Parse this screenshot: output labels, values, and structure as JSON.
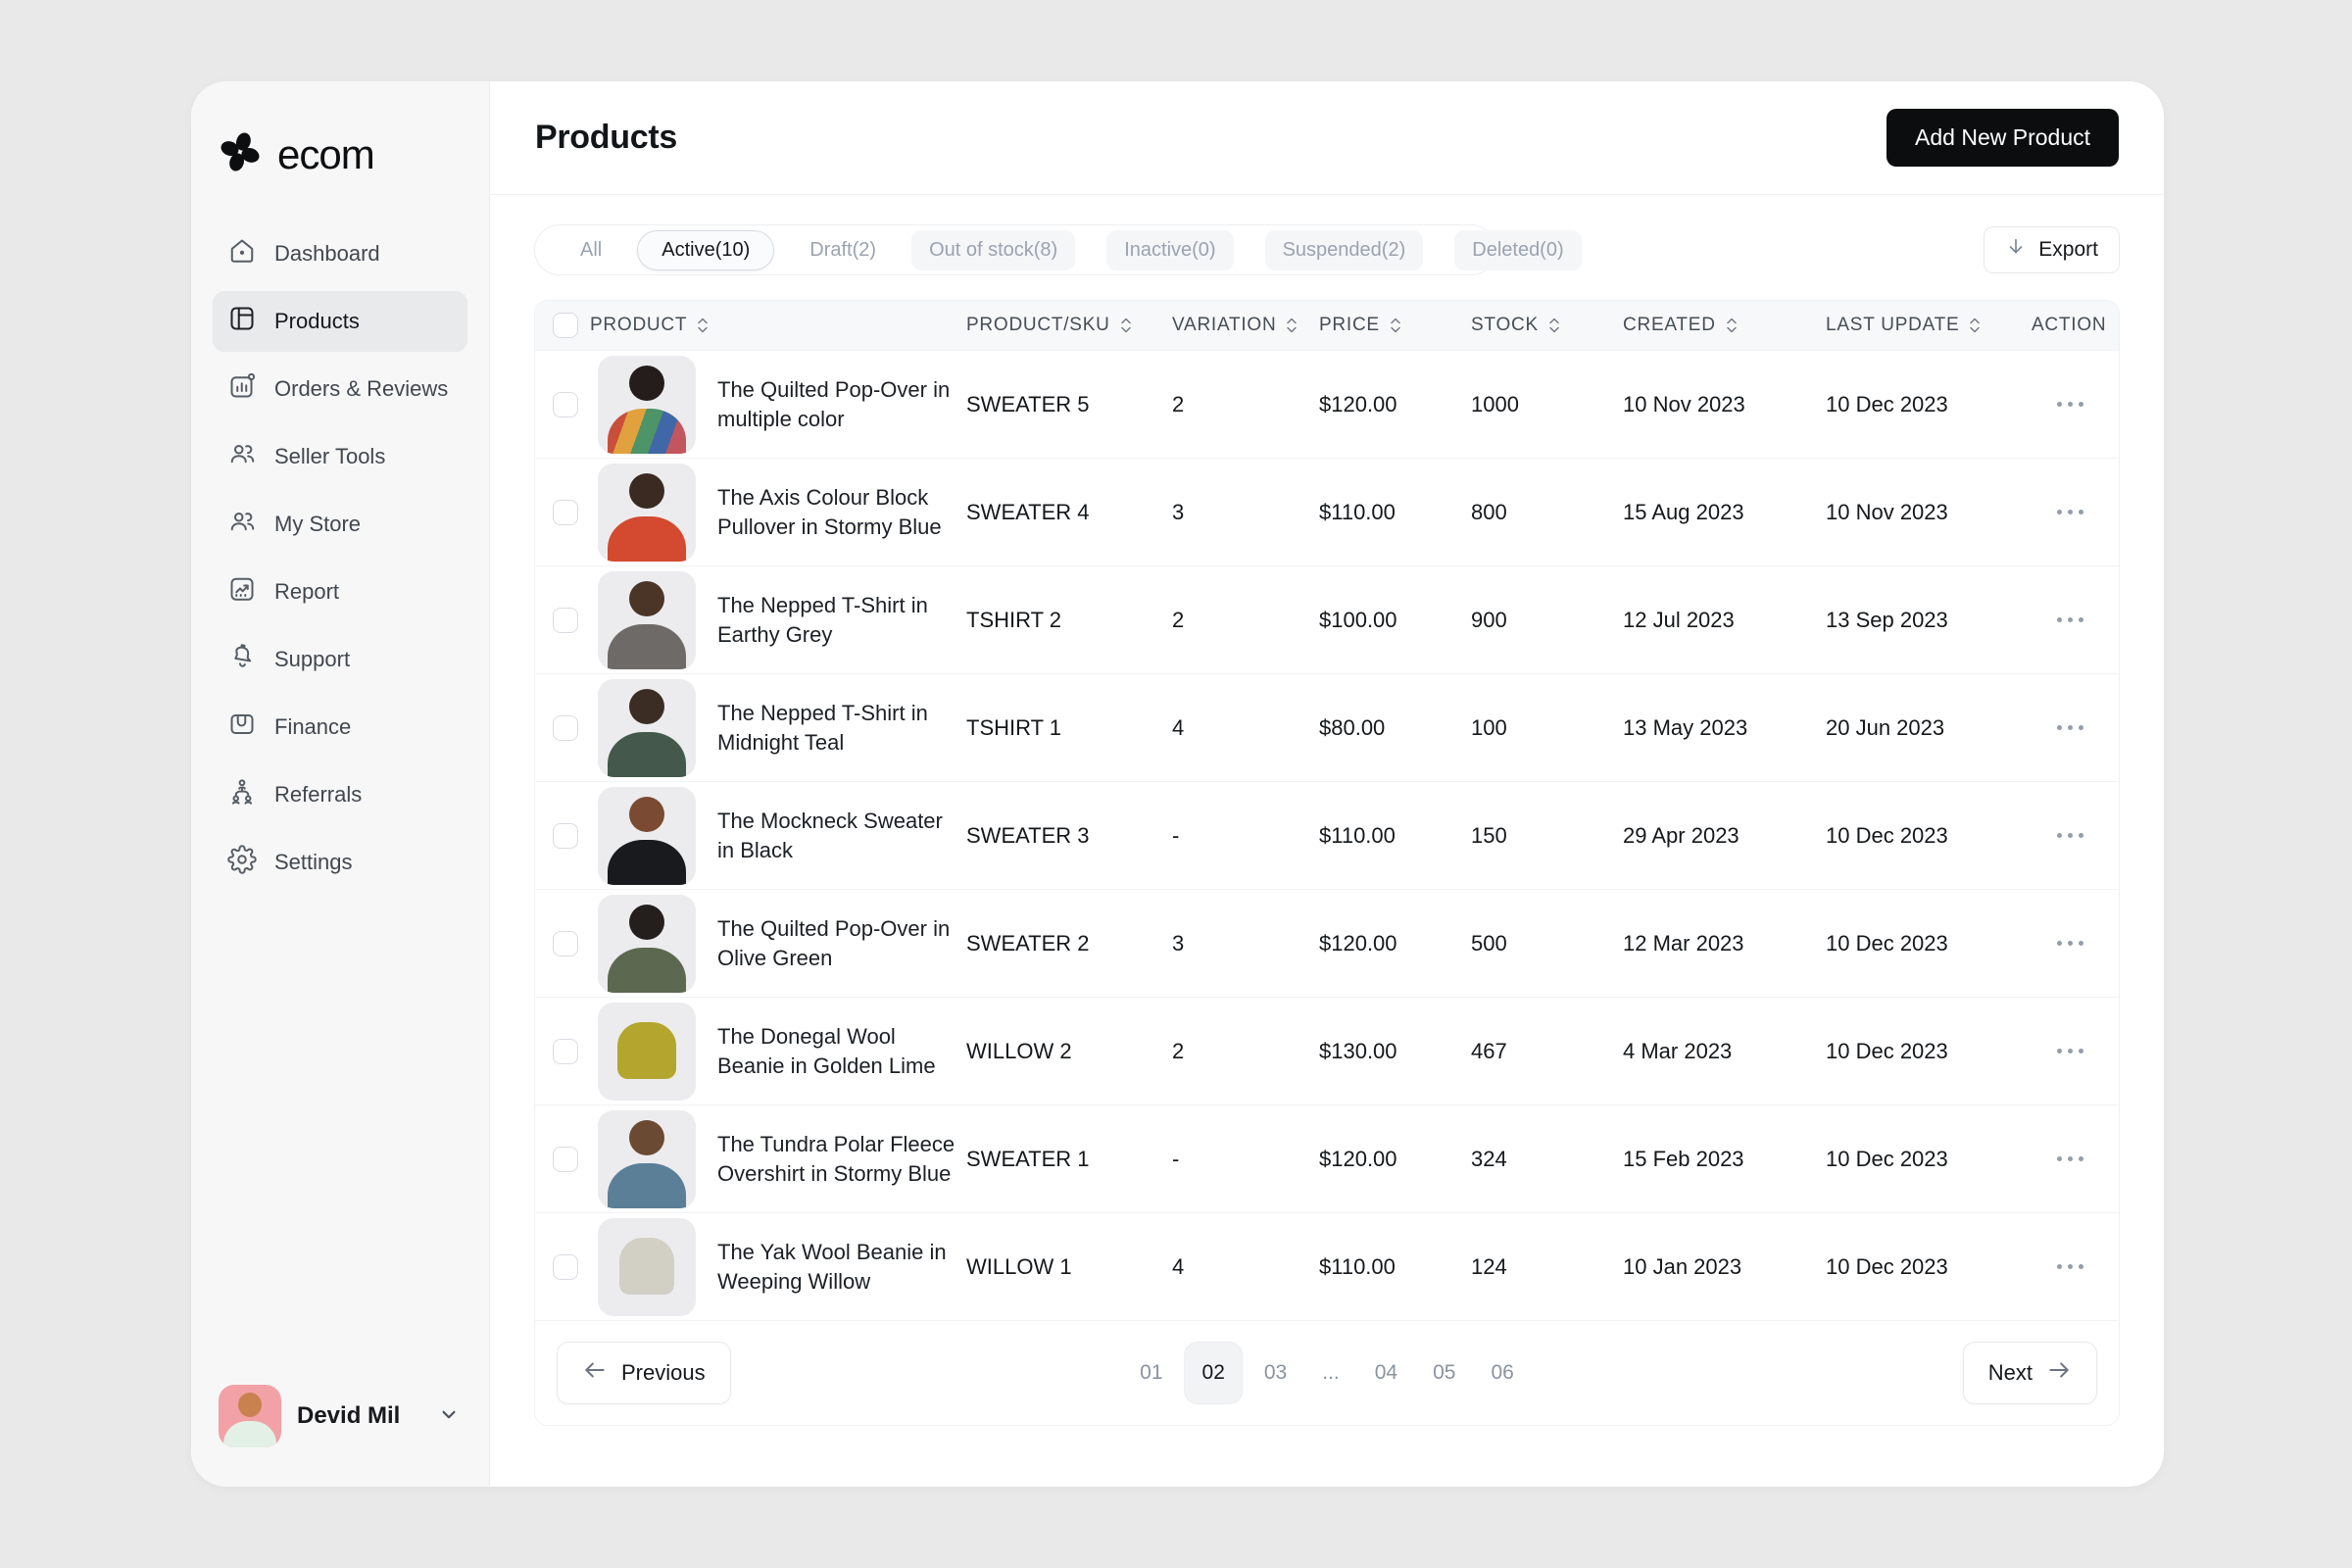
{
  "brand": {
    "name": "ecom",
    "logo_icon": "clover-icon"
  },
  "sidebar": {
    "items": [
      {
        "label": "Dashboard",
        "icon": "home-icon",
        "active": false
      },
      {
        "label": "Products",
        "icon": "products-icon",
        "active": true
      },
      {
        "label": "Orders & Reviews",
        "icon": "orders-reviews-icon",
        "active": false
      },
      {
        "label": "Seller Tools",
        "icon": "seller-tools-icon",
        "active": false
      },
      {
        "label": "My Store",
        "icon": "my-store-icon",
        "active": false
      },
      {
        "label": "Report",
        "icon": "report-icon",
        "active": false
      },
      {
        "label": "Support",
        "icon": "support-icon",
        "active": false
      },
      {
        "label": "Finance",
        "icon": "finance-icon",
        "active": false
      },
      {
        "label": "Referrals",
        "icon": "referrals-icon",
        "active": false
      },
      {
        "label": "Settings",
        "icon": "settings-icon",
        "active": false
      }
    ],
    "user": {
      "name": "Devid Mil"
    }
  },
  "header": {
    "title": "Products",
    "add_button": "Add New Product"
  },
  "toolbar": {
    "tabs": [
      {
        "label": "All",
        "style": "plain",
        "selected": false
      },
      {
        "label": "Active(10)",
        "style": "active",
        "selected": true
      },
      {
        "label": "Draft(2)",
        "style": "plain",
        "selected": false
      },
      {
        "label": "Out of stock(8)",
        "style": "soft",
        "selected": false
      },
      {
        "label": "Inactive(0)",
        "style": "soft",
        "selected": false
      },
      {
        "label": "Suspended(2)",
        "style": "soft",
        "selected": false
      },
      {
        "label": "Deleted(0)",
        "style": "soft",
        "selected": false
      }
    ],
    "export_label": "Export"
  },
  "table": {
    "columns": [
      {
        "label": "PRODUCT",
        "sortable": true
      },
      {
        "label": "PRODUCT/SKU",
        "sortable": true
      },
      {
        "label": "VARIATION",
        "sortable": true
      },
      {
        "label": "PRICE",
        "sortable": true
      },
      {
        "label": "STOCK",
        "sortable": true
      },
      {
        "label": "CREATED",
        "sortable": true
      },
      {
        "label": "LAST UPDATE",
        "sortable": true
      },
      {
        "label": "ACTION",
        "sortable": false
      }
    ],
    "rows": [
      {
        "name": "The Quilted Pop-Over in multiple color",
        "sku": "SWEATER 5",
        "variation": "2",
        "price": "$120.00",
        "stock": "1000",
        "created": "10 Nov 2023",
        "updated": "10 Dec 2023",
        "thumb": "multicolor-sweater"
      },
      {
        "name": "The Axis Colour Block Pullover in Stormy Blue",
        "sku": "SWEATER 4",
        "variation": "3",
        "price": "$110.00",
        "stock": "800",
        "created": "15 Aug 2023",
        "updated": "10 Nov 2023",
        "thumb": "red-hoodie"
      },
      {
        "name": "The Nepped T-Shirt in Earthy Grey",
        "sku": "TSHIRT 2",
        "variation": "2",
        "price": "$100.00",
        "stock": "900",
        "created": "12 Jul 2023",
        "updated": "13 Sep 2023",
        "thumb": "grey-tshirt"
      },
      {
        "name": "The Nepped T-Shirt in Midnight Teal",
        "sku": "TSHIRT 1",
        "variation": "4",
        "price": "$80.00",
        "stock": "100",
        "created": "13 May 2023",
        "updated": "20 Jun 2023",
        "thumb": "teal-tshirt"
      },
      {
        "name": "The Mockneck Sweater in Black",
        "sku": "SWEATER 3",
        "variation": "-",
        "price": "$110.00",
        "stock": "150",
        "created": "29 Apr 2023",
        "updated": "10 Dec 2023",
        "thumb": "black-sweater"
      },
      {
        "name": "The Quilted Pop-Over in Olive Green",
        "sku": "SWEATER 2",
        "variation": "3",
        "price": "$120.00",
        "stock": "500",
        "created": "12 Mar 2023",
        "updated": "10 Dec 2023",
        "thumb": "olive-jacket"
      },
      {
        "name": "The Donegal Wool Beanie in Golden Lime",
        "sku": "WILLOW 2",
        "variation": "2",
        "price": "$130.00",
        "stock": "467",
        "created": "4 Mar 2023",
        "updated": "10 Dec 2023",
        "thumb": "lime-beanie"
      },
      {
        "name": "The Tundra Polar Fleece Overshirt in Stormy Blue",
        "sku": "SWEATER 1",
        "variation": "-",
        "price": "$120.00",
        "stock": "324",
        "created": "15 Feb 2023",
        "updated": "10 Dec 2023",
        "thumb": "blue-overshirt"
      },
      {
        "name": "The Yak Wool Beanie in Weeping Willow",
        "sku": "WILLOW 1",
        "variation": "4",
        "price": "$110.00",
        "stock": "124",
        "created": "10 Jan 2023",
        "updated": "10 Dec 2023",
        "thumb": "stone-beanie"
      }
    ]
  },
  "pagination": {
    "previous_label": "Previous",
    "next_label": "Next",
    "pages": [
      "01",
      "02",
      "03",
      "...",
      "04",
      "05",
      "06"
    ],
    "active_page": "02"
  },
  "colors": {
    "page_background": "#e9e9ea",
    "sidebar_background": "#f7f7f8",
    "active_nav_background": "#e8eaec",
    "primary_button": "#0c0d0e",
    "table_header_background": "#f7f8f9",
    "muted_text": "#9aa3b0",
    "avatar_background": "#f2a2a6"
  }
}
